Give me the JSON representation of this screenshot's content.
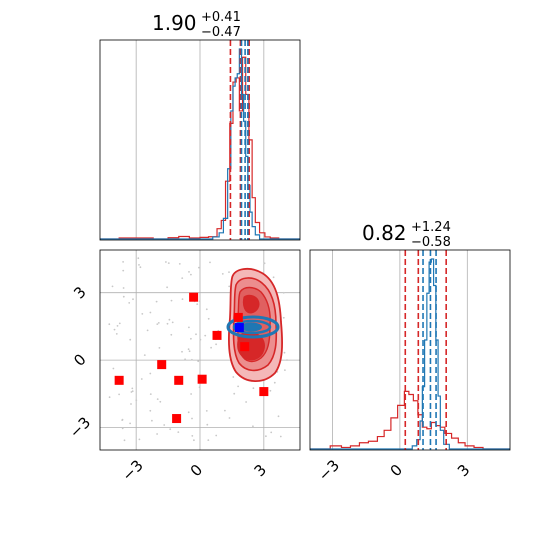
{
  "chart_data": [
    {
      "type": "histogram",
      "panel": "marginal-param1",
      "title": {
        "value": "1.90",
        "plus": "+0.41",
        "minus": "−0.47"
      },
      "xlim": [
        -4.7,
        4.7
      ],
      "xticks": [
        -3,
        0,
        3
      ],
      "grid": true,
      "red_quantiles": [
        1.43,
        1.9,
        2.31
      ],
      "blue_quantiles": [
        1.95,
        2.12,
        2.25
      ],
      "series": [
        {
          "color": "#d62728",
          "bin_edges": [
            -4.7,
            -3.8,
            -3.0,
            -2.2,
            -1.5,
            -1.0,
            -0.5,
            0,
            0.4,
            0.8,
            1.0,
            1.2,
            1.4,
            1.55,
            1.7,
            1.85,
            2.0,
            2.15,
            2.3,
            2.45,
            2.6,
            2.8,
            3.05,
            3.3,
            3.7,
            4.7
          ],
          "counts": [
            0,
            0.5,
            0.5,
            0,
            0.6,
            1.2,
            0.5,
            0.8,
            1.1,
            5,
            9,
            28,
            56,
            76,
            78,
            62,
            88,
            70,
            48,
            20,
            8,
            3,
            1,
            0.5,
            0
          ]
        },
        {
          "color": "#1f77b4",
          "bin_edges": [
            -4.7,
            0.6,
            0.9,
            1.1,
            1.3,
            1.45,
            1.55,
            1.65,
            1.75,
            1.85,
            1.95,
            2.05,
            2.15,
            2.25,
            2.35,
            2.45,
            2.6,
            2.8,
            4.7
          ],
          "counts": [
            0,
            1,
            3,
            10,
            34,
            62,
            74,
            78,
            80,
            92,
            70,
            57,
            40,
            26,
            13,
            6,
            2,
            0
          ]
        }
      ]
    },
    {
      "type": "scatter",
      "panel": "joint",
      "xlim": [
        -4.7,
        4.7
      ],
      "ylim": [
        -4.0,
        4.9
      ],
      "xticks": [
        -3,
        0,
        3
      ],
      "yticks": [
        -3,
        0,
        3
      ],
      "grid": true,
      "red_points": [
        [
          -3.8,
          -0.9
        ],
        [
          -1.8,
          -0.2
        ],
        [
          -0.3,
          2.8
        ],
        [
          -1.0,
          -0.9
        ],
        [
          0.1,
          -0.85
        ],
        [
          -1.1,
          -2.6
        ],
        [
          0.8,
          1.1
        ],
        [
          1.8,
          1.9
        ],
        [
          2.1,
          0.6
        ],
        [
          3.0,
          -1.4
        ]
      ],
      "blue_point": [
        1.85,
        1.45
      ],
      "red_density_levels": 4,
      "blue_density_levels": 3
    },
    {
      "type": "histogram",
      "panel": "marginal-param2",
      "title": {
        "value": "0.82",
        "plus": "+1.24",
        "minus": "−0.58"
      },
      "xlim": [
        -4.0,
        4.9
      ],
      "xticks": [
        -3,
        0,
        3
      ],
      "grid": true,
      "red_quantiles": [
        0.24,
        0.82,
        2.06
      ],
      "blue_quantiles": [
        1.03,
        1.36,
        1.61
      ],
      "series": [
        {
          "color": "#d62728",
          "bin_edges": [
            -4.0,
            -3.1,
            -2.6,
            -2.2,
            -1.8,
            -1.4,
            -1.0,
            -0.7,
            -0.4,
            -0.1,
            0.2,
            0.4,
            0.6,
            0.8,
            1.0,
            1.2,
            1.4,
            1.6,
            1.8,
            2.0,
            2.3,
            2.6,
            2.9,
            3.3,
            3.7,
            4.9
          ],
          "counts": [
            0,
            2,
            1,
            2,
            4,
            5,
            8,
            12,
            20,
            28,
            37,
            35,
            31,
            22,
            14,
            13,
            17,
            15,
            14,
            10,
            7,
            4,
            2,
            1,
            0
          ]
        },
        {
          "color": "#1f77b4",
          "bin_edges": [
            -4.0,
            0.55,
            0.75,
            0.9,
            1.0,
            1.1,
            1.2,
            1.3,
            1.4,
            1.5,
            1.6,
            1.7,
            1.8,
            1.95,
            2.2,
            4.9
          ],
          "counts": [
            0,
            2,
            6,
            18,
            40,
            70,
            100,
            120,
            122,
            105,
            70,
            34,
            12,
            3,
            0
          ]
        }
      ]
    }
  ]
}
